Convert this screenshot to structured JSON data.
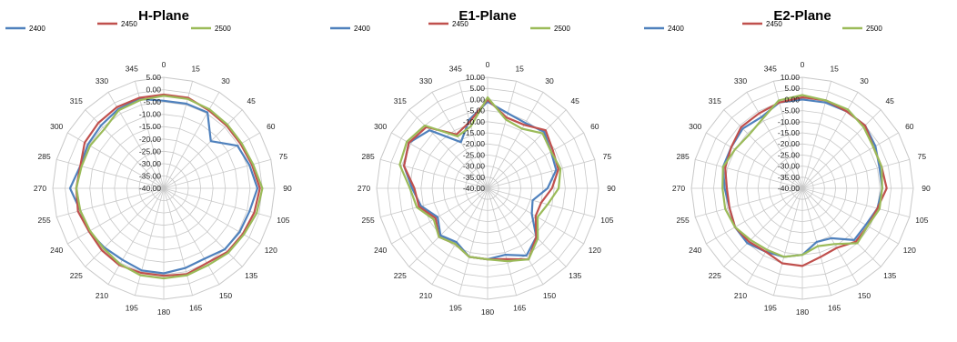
{
  "legend": [
    {
      "name": "2400",
      "color": "#4f81bd"
    },
    {
      "name": "2450",
      "color": "#c0504d"
    },
    {
      "name": "2500",
      "color": "#9bbb59"
    }
  ],
  "chart_data": [
    {
      "type": "radar",
      "title": "H-Plane",
      "angles": [
        "0",
        "15",
        "30",
        "45",
        "60",
        "75",
        "90",
        "105",
        "120",
        "135",
        "150",
        "165",
        "180",
        "195",
        "210",
        "225",
        "240",
        "255",
        "270",
        "285",
        "300",
        "315",
        "330",
        "345"
      ],
      "rlim": [
        -40,
        5
      ],
      "rticks": [
        "5.00",
        "0.00",
        "-5.00",
        "-10.00",
        "-15.00",
        "-20.00",
        "-25.00",
        "-30.00",
        "-35.00",
        "-40.00"
      ],
      "series": [
        {
          "name": "2400",
          "values": [
            -4.5,
            -4.5,
            -4.5,
            -13,
            -5.5,
            -4,
            -2,
            -4,
            -4.5,
            -5,
            -7,
            -6.5,
            -5.5,
            -5.5,
            -6.5,
            -6,
            -5,
            -5,
            -2,
            -5,
            -4.5,
            -4,
            -3,
            -2.5
          ]
        },
        {
          "name": "2450",
          "values": [
            -2,
            -2,
            -3.5,
            -4,
            -4,
            -3,
            -1,
            -2,
            -3,
            -3.5,
            -5,
            -4,
            -4.5,
            -4.5,
            -4,
            -4.5,
            -5,
            -4,
            -4.5,
            -5,
            -3,
            -2.5,
            -2,
            -2
          ]
        },
        {
          "name": "2500",
          "values": [
            -2.5,
            -2.5,
            -3,
            -3.5,
            -3.5,
            -2.5,
            0,
            -1,
            -2.5,
            -3,
            -4,
            -3.5,
            -3.5,
            -3.5,
            -4.5,
            -5.5,
            -5.5,
            -5,
            -4.5,
            -5.5,
            -5.5,
            -6,
            -3.5,
            -3
          ]
        }
      ]
    },
    {
      "type": "radar",
      "title": "E1-Plane",
      "angles": [
        "0",
        "15",
        "30",
        "45",
        "60",
        "75",
        "90",
        "105",
        "120",
        "135",
        "150",
        "165",
        "180",
        "195",
        "210",
        "225",
        "240",
        "255",
        "270",
        "285",
        "300",
        "315",
        "330",
        "345"
      ],
      "rlim": [
        -40,
        10
      ],
      "rticks": [
        "10.00",
        "5.00",
        "0.00",
        "-5.00",
        "-10.00",
        "-15.00",
        "-20.00",
        "-25.00",
        "-30.00",
        "-35.00",
        "-40.00"
      ],
      "series": [
        {
          "name": "2400",
          "values": [
            -1,
            -5,
            -6,
            -4,
            -7,
            -8,
            -13,
            -19,
            -17,
            -9,
            -5,
            -9,
            -8,
            -8,
            -12,
            -10,
            -14,
            -9,
            -6,
            -1,
            1,
            -3,
            -16,
            -8
          ]
        },
        {
          "name": "2450",
          "values": [
            0,
            -7,
            -7,
            -3,
            -6,
            -7,
            -11,
            -15,
            -15,
            -9,
            -3,
            -7,
            -8,
            -8,
            -11,
            -9,
            -13,
            -8,
            -7,
            -1,
            1,
            -1,
            -12,
            -9
          ]
        },
        {
          "name": "2500",
          "values": [
            1,
            -8,
            -9,
            -5,
            -7,
            -6,
            -8,
            -12,
            -14,
            -8,
            -3,
            -6,
            -8,
            -8,
            -11,
            -9,
            -12,
            -7,
            -5,
            1,
            2,
            0,
            -13,
            -11
          ]
        }
      ]
    },
    {
      "type": "radar",
      "title": "E2-Plane",
      "angles": [
        "0",
        "15",
        "30",
        "45",
        "60",
        "75",
        "90",
        "105",
        "120",
        "135",
        "150",
        "165",
        "180",
        "195",
        "210",
        "225",
        "240",
        "255",
        "270",
        "285",
        "300",
        "315",
        "330",
        "345"
      ],
      "rlim": [
        -40,
        10
      ],
      "rticks": [
        "10.00",
        "5.00",
        "0.00",
        "-5.00",
        "-10.00",
        "-15.00",
        "-20.00",
        "-25.00",
        "-30.00",
        "-35.00",
        "-40.00"
      ],
      "series": [
        {
          "name": "2400",
          "values": [
            0,
            0,
            0,
            0,
            -2,
            -4,
            -4,
            -5,
            -7,
            -7,
            -14,
            -15,
            -10,
            -8,
            -7,
            -5,
            -5,
            -6,
            -5,
            -3,
            -3,
            -2,
            -3,
            0
          ]
        },
        {
          "name": "2450",
          "values": [
            1,
            1,
            0,
            0,
            -3,
            -3,
            -2,
            -5,
            -6,
            -6,
            -9,
            -8,
            -5,
            -5,
            -7,
            -6,
            -5,
            -6,
            -6,
            -4,
            -3,
            -1,
            -1,
            0
          ]
        },
        {
          "name": "2500",
          "values": [
            2,
            1,
            1,
            -1,
            -3,
            -3,
            -4,
            -4,
            -6,
            -5,
            -11,
            -13,
            -10,
            -8,
            -8,
            -7,
            -5,
            -4,
            -4,
            -3,
            -5,
            -6,
            -4,
            1
          ]
        }
      ]
    }
  ]
}
